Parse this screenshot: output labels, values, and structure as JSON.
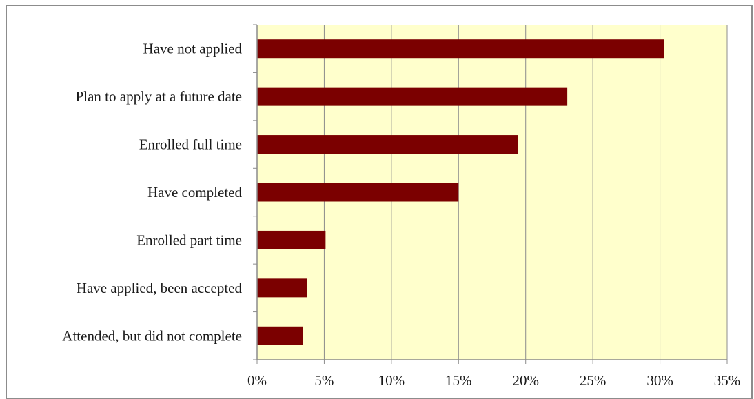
{
  "chart_data": {
    "type": "bar",
    "orientation": "horizontal",
    "categories": [
      "Have not applied",
      "Plan to apply at a future date",
      "Enrolled full time",
      "Have completed",
      "Enrolled part time",
      "Have applied, been accepted",
      "Attended, but did not complete"
    ],
    "values": [
      30.3,
      23.1,
      19.4,
      15.0,
      5.1,
      3.7,
      3.4
    ],
    "xlim": [
      0,
      35
    ],
    "x_ticks": [
      0,
      5,
      10,
      15,
      20,
      25,
      30,
      35
    ],
    "x_tick_labels": [
      "0%",
      "5%",
      "10%",
      "15%",
      "20%",
      "25%",
      "30%",
      "35%"
    ],
    "title": "",
    "xlabel": "",
    "ylabel": "",
    "grid": "vertical",
    "legend": "none",
    "colors": {
      "bar": "#7b0000",
      "plot_background": "#ffffcc",
      "gridline": "#8c8c8c",
      "axis": "#8c8c8c"
    }
  }
}
